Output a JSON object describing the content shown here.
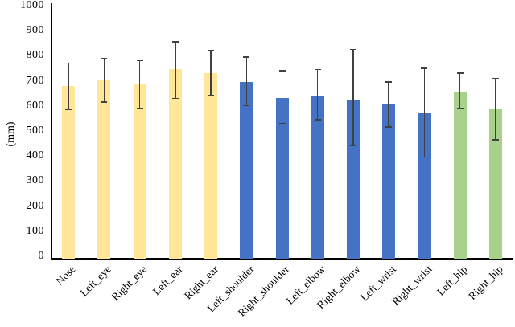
{
  "chart_data": {
    "type": "bar",
    "title": "",
    "xlabel": "",
    "ylabel": "(mm)",
    "ylim": [
      0,
      1000
    ],
    "ytick_step": 100,
    "ytick_labels": [
      "0",
      "100",
      "200",
      "300",
      "400",
      "500",
      "600",
      "700",
      "800",
      "900",
      "1000"
    ],
    "grid": false,
    "legend": "none",
    "categories": [
      "Nose",
      "Left_eye",
      "Right_eye",
      "Left_ear",
      "Right_ear",
      "Left_shoulder",
      "Right_shoulder",
      "Left_elbow",
      "Right_elbow",
      "Left_wrist",
      "Right_wrist",
      "Left_hip",
      "Right_hip"
    ],
    "values": [
      690,
      710,
      700,
      755,
      740,
      705,
      640,
      650,
      635,
      615,
      580,
      665,
      595
    ],
    "error_top": [
      780,
      800,
      790,
      865,
      830,
      805,
      750,
      755,
      835,
      705,
      760,
      740,
      720
    ],
    "error_bottom": [
      595,
      625,
      600,
      640,
      650,
      610,
      540,
      555,
      450,
      525,
      405,
      600,
      475
    ],
    "bar_colors": [
      "#FFE699",
      "#FFE699",
      "#FFE699",
      "#FFE699",
      "#FFE699",
      "#4472C4",
      "#4472C4",
      "#4472C4",
      "#4472C4",
      "#4472C4",
      "#4472C4",
      "#A9D18E",
      "#A9D18E"
    ]
  },
  "colors": {
    "face_group": "#FFE699",
    "upper_body_group": "#4472C4",
    "hip_group": "#A9D18E",
    "error_bar": "#404040",
    "axis": "#000000",
    "background": "#ffffff"
  }
}
